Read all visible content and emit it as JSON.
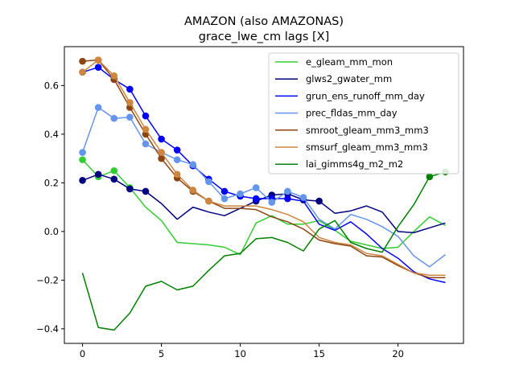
{
  "chart_data": {
    "type": "line",
    "title": "AMAZON (also AMAZONAS)",
    "subtitle": "grace_lwe_cm lags [X]",
    "xlabel": "",
    "ylabel": "",
    "xlim": [
      -1.15,
      24.15
    ],
    "ylim": [
      -0.46,
      0.76
    ],
    "xticks": [
      0,
      5,
      10,
      15,
      20
    ],
    "yticks": [
      -0.4,
      -0.2,
      0.0,
      0.2,
      0.4,
      0.6
    ],
    "ytick_labels": [
      "−0.4",
      "−0.2",
      "0.0",
      "0.2",
      "0.4",
      "0.6"
    ],
    "grid": false,
    "legend_position": "top-right",
    "x": [
      0,
      1,
      2,
      3,
      4,
      5,
      6,
      7,
      8,
      9,
      10,
      11,
      12,
      13,
      14,
      15,
      16,
      17,
      18,
      19,
      20,
      21,
      22,
      23
    ],
    "series": [
      {
        "name": "e_gleam_mm_mon",
        "color": "#32cd32",
        "values": [
          0.295,
          0.225,
          0.25,
          0.18,
          0.1,
          0.045,
          -0.045,
          -0.05,
          -0.055,
          -0.065,
          -0.095,
          0.035,
          0.065,
          0.03,
          0.03,
          0.045,
          0.005,
          -0.04,
          -0.055,
          -0.07,
          -0.065,
          0.0,
          0.06,
          0.025
        ],
        "markers": [
          0,
          1,
          2,
          3
        ]
      },
      {
        "name": "glws2_gwater_mm",
        "color": "#000080",
        "values": [
          0.21,
          0.235,
          0.215,
          0.175,
          0.165,
          0.115,
          0.05,
          0.1,
          0.08,
          0.065,
          0.095,
          0.125,
          0.15,
          0.155,
          0.13,
          0.125,
          0.075,
          0.085,
          0.105,
          0.08,
          0.0,
          -0.005,
          0.015,
          0.035
        ],
        "markers": [
          0,
          1,
          2,
          3,
          4,
          11,
          12,
          13,
          14,
          15
        ]
      },
      {
        "name": "grun_ens_runoff_mm_day",
        "color": "#0000ff",
        "values": [
          0.655,
          0.675,
          0.625,
          0.585,
          0.475,
          0.38,
          0.335,
          0.27,
          0.215,
          0.165,
          0.145,
          0.135,
          0.135,
          0.135,
          0.125,
          0.03,
          0.005,
          0.04,
          -0.01,
          -0.07,
          -0.11,
          -0.165,
          -0.195,
          -0.21
        ],
        "markers": [
          0,
          1,
          2,
          3,
          4,
          5,
          6,
          7,
          8,
          9,
          10,
          11,
          12,
          13
        ]
      },
      {
        "name": "prec_fldas_mm_day",
        "color": "#6495ed",
        "values": [
          0.325,
          0.51,
          0.465,
          0.47,
          0.36,
          0.325,
          0.295,
          0.275,
          0.205,
          0.135,
          0.155,
          0.18,
          0.12,
          0.165,
          0.14,
          0.05,
          0.01,
          0.07,
          0.05,
          0.02,
          -0.02,
          -0.1,
          -0.145,
          -0.095
        ],
        "markers": [
          0,
          1,
          2,
          3,
          4,
          5,
          6,
          7,
          8,
          9,
          10,
          11,
          12,
          13,
          14
        ]
      },
      {
        "name": "smroot_gleam_mm3_mm3",
        "color": "#8b4513",
        "values": [
          0.7,
          0.705,
          0.625,
          0.51,
          0.4,
          0.3,
          0.22,
          0.165,
          0.125,
          0.095,
          0.095,
          0.09,
          0.06,
          0.04,
          0.01,
          -0.035,
          -0.05,
          -0.06,
          -0.1,
          -0.105,
          -0.14,
          -0.17,
          -0.19,
          -0.19
        ],
        "markers": [
          0,
          1,
          2,
          3,
          4,
          5,
          6,
          7,
          8
        ]
      },
      {
        "name": "smsurf_gleam_mm3_mm3",
        "color": "#cd853f",
        "values": [
          0.655,
          0.705,
          0.64,
          0.53,
          0.42,
          0.325,
          0.235,
          0.17,
          0.125,
          0.105,
          0.105,
          0.105,
          0.09,
          0.07,
          0.04,
          -0.025,
          -0.045,
          -0.055,
          -0.09,
          -0.1,
          -0.135,
          -0.17,
          -0.18,
          -0.18
        ],
        "markers": [
          0,
          1,
          2,
          3,
          4,
          5,
          6,
          7,
          8
        ]
      },
      {
        "name": "lai_gimms4g_m2_m2",
        "color": "#008000",
        "values": [
          -0.17,
          -0.395,
          -0.405,
          -0.335,
          -0.225,
          -0.205,
          -0.24,
          -0.225,
          -0.16,
          -0.1,
          -0.09,
          -0.03,
          -0.025,
          -0.045,
          -0.08,
          0.01,
          0.045,
          -0.045,
          -0.07,
          -0.085,
          0.02,
          0.11,
          0.225,
          0.245
        ],
        "markers": [
          22,
          23
        ]
      }
    ]
  }
}
